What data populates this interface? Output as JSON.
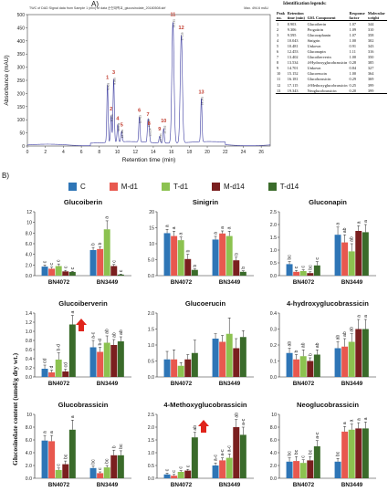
{
  "panel_a": {
    "label": "A)",
    "chrom_header_left": "TWC of DAD Signal data  from Sample 1 (mix) of data 순천대학교_glucosinolate_20180508.sirf",
    "chrom_header_right": "Max. 494.6 mAU",
    "legend_title": "Identification legends:",
    "legend_headers": [
      "Peak no.",
      "Retention time (min)",
      "GSL Component",
      "Response factor",
      "Molecular weight"
    ],
    "legend_rows": [
      [
        "1",
        "8.903",
        "Glucoiberin",
        "1.07",
        "344"
      ],
      [
        "2",
        "9.306",
        "Progoitrin",
        "1.09",
        "310"
      ],
      [
        "3",
        "9.595",
        "Glucoraphanin",
        "1.07",
        "358"
      ],
      [
        "4",
        "10.043",
        "Sinigrin",
        "1.00",
        "302"
      ],
      [
        "5",
        "10.481",
        "Unkown",
        "0.91",
        "343"
      ],
      [
        "6",
        "12.453",
        "Gluconapin",
        "1.11",
        "316"
      ],
      [
        "7",
        "13.402",
        "Glucoiberverin",
        "1.00",
        "350"
      ],
      [
        "8",
        "13.534",
        "4-Hydroxyglucobrassicin",
        "0.28",
        "385"
      ],
      [
        "9",
        "14.701",
        "Unkown",
        "0.84",
        "327"
      ],
      [
        "10",
        "15.152",
        "Glucoerucin",
        "1.00",
        "364"
      ],
      [
        "11",
        "16.181",
        "Glucobrassicin",
        "0.29",
        "369"
      ],
      [
        "12",
        "17.115",
        "4-Methoxyglucobrassicin",
        "0.25",
        "399"
      ],
      [
        "13",
        "19.343",
        "Neoglucobrassicin",
        "0.20",
        "399"
      ]
    ]
  },
  "panel_b": {
    "label": "B)",
    "ylabel": "Glucosinolate content (umol/g dry wt.)",
    "treatments": [
      "C",
      "M-d1",
      "T-d1",
      "M-d14",
      "T-d14"
    ]
  },
  "colors": {
    "C": "#2e75b6",
    "M-d1": "#e8584f",
    "T-d1": "#8cc250",
    "M-d14": "#7a1f1f",
    "T-d14": "#3a6b2a",
    "trace": "#3a3aa0",
    "peak_label": "#c0392b",
    "arrow": "#e0241b"
  },
  "chart_data": [
    {
      "type": "line",
      "title": "",
      "xlabel": "Retention time (min)",
      "ylabel": "Absorbance (mAU)",
      "xlim": [
        0,
        27
      ],
      "ylim": [
        0,
        500
      ],
      "xticks": [
        0,
        2,
        4,
        6,
        8,
        10,
        12,
        14,
        16,
        18,
        20,
        22,
        24,
        26
      ],
      "yticks": [
        0,
        50,
        100,
        150,
        200,
        250,
        300,
        350,
        400,
        450,
        500
      ],
      "peaks": [
        {
          "label": "1",
          "rt": 8.903,
          "height": 220
        },
        {
          "label": "2",
          "rt": 9.306,
          "height": 100
        },
        {
          "label": "3",
          "rt": 9.595,
          "height": 240
        },
        {
          "label": "4",
          "rt": 10.043,
          "height": 65
        },
        {
          "label": "5",
          "rt": 10.481,
          "height": 40
        },
        {
          "label": "6",
          "rt": 12.453,
          "height": 95
        },
        {
          "label": "7",
          "rt": 13.402,
          "height": 80
        },
        {
          "label": "8",
          "rt": 13.534,
          "height": 45
        },
        {
          "label": "9",
          "rt": 14.701,
          "height": 25
        },
        {
          "label": "10",
          "rt": 15.152,
          "height": 55
        },
        {
          "label": "11",
          "rt": 16.181,
          "height": 460
        },
        {
          "label": "12",
          "rt": 17.115,
          "height": 410
        },
        {
          "label": "13",
          "rt": 19.343,
          "height": 165
        }
      ]
    },
    {
      "type": "bar",
      "title": "Glucoiberin",
      "categories": [
        "BN4072",
        "BN3449"
      ],
      "ylim": [
        0,
        12
      ],
      "yticks": [
        0,
        2,
        4,
        6,
        8,
        10,
        12
      ],
      "series": [
        {
          "name": "C",
          "values": [
            1.7,
            4.8
          ],
          "errors": [
            0.3,
            0.5
          ],
          "letters": [
            "c",
            "b"
          ]
        },
        {
          "name": "M-d1",
          "values": [
            1.3,
            5.0
          ],
          "errors": [
            0.3,
            0.4
          ],
          "letters": [
            "c",
            "b"
          ]
        },
        {
          "name": "T-d1",
          "values": [
            1.8,
            8.7
          ],
          "errors": [
            0.4,
            1.6
          ],
          "letters": [
            "c",
            "a"
          ]
        },
        {
          "name": "M-d14",
          "values": [
            0.8,
            1.8
          ],
          "errors": [
            0.2,
            0.3
          ],
          "letters": [
            "c",
            "c"
          ]
        },
        {
          "name": "T-d14",
          "values": [
            0.7,
            0.2
          ],
          "errors": [
            0.1,
            0.1
          ],
          "letters": [
            "c",
            "c"
          ]
        }
      ]
    },
    {
      "type": "bar",
      "title": "Sinigrin",
      "categories": [
        "BN4072",
        "BN3449"
      ],
      "ylim": [
        0,
        20
      ],
      "yticks": [
        0,
        5,
        10,
        15,
        20
      ],
      "series": [
        {
          "name": "C",
          "values": [
            13.3,
            11.3
          ],
          "errors": [
            1.2,
            1.0
          ],
          "letters": [
            "a",
            "a"
          ]
        },
        {
          "name": "M-d1",
          "values": [
            12.4,
            13.2
          ],
          "errors": [
            1.5,
            0.8
          ],
          "letters": [
            "a",
            "a"
          ]
        },
        {
          "name": "T-d1",
          "values": [
            11.1,
            12.4
          ],
          "errors": [
            1.0,
            1.5
          ],
          "letters": [
            "a",
            "a"
          ]
        },
        {
          "name": "M-d14",
          "values": [
            5.2,
            4.8
          ],
          "errors": [
            1.5,
            1.0
          ],
          "letters": [
            "b",
            "b"
          ]
        },
        {
          "name": "T-d14",
          "values": [
            1.8,
            1.2
          ],
          "errors": [
            0.3,
            0.3
          ],
          "letters": [
            "b",
            "b"
          ]
        }
      ]
    },
    {
      "type": "bar",
      "title": "Gluconapin",
      "categories": [
        "BN4072",
        "BN3449"
      ],
      "ylim": [
        0,
        2.5
      ],
      "yticks": [
        0,
        0.5,
        1,
        1.5,
        2,
        2.5
      ],
      "series": [
        {
          "name": "C",
          "values": [
            0.45,
            1.6
          ],
          "errors": [
            0.1,
            0.3
          ],
          "letters": [
            "bc",
            "a"
          ]
        },
        {
          "name": "M-d1",
          "values": [
            0.15,
            1.3
          ],
          "errors": [
            0.05,
            0.3
          ],
          "letters": [
            "c",
            "ab"
          ]
        },
        {
          "name": "T-d1",
          "values": [
            0.18,
            0.95
          ],
          "errors": [
            0.05,
            0.3
          ],
          "letters": [
            "c",
            "ab"
          ]
        },
        {
          "name": "M-d14",
          "values": [
            0.1,
            1.75
          ],
          "errors": [
            0.05,
            0.2
          ],
          "letters": [
            "bc",
            "a"
          ]
        },
        {
          "name": "T-d14",
          "values": [
            0.4,
            1.7
          ],
          "errors": [
            0.15,
            0.3
          ],
          "letters": [
            "c",
            "a"
          ]
        }
      ]
    },
    {
      "type": "bar",
      "title": "Glucoiberverin",
      "categories": [
        "BN4072",
        "BN3449"
      ],
      "ylim": [
        0,
        1.4
      ],
      "yticks": [
        0,
        0.2,
        0.4,
        0.6,
        0.8,
        1,
        1.2,
        1.4
      ],
      "series": [
        {
          "name": "C",
          "values": [
            0.18,
            0.65
          ],
          "errors": [
            0.08,
            0.15
          ],
          "letters": [
            "cd",
            "a-c"
          ]
        },
        {
          "name": "M-d1",
          "values": [
            0.1,
            0.55
          ],
          "errors": [
            0.05,
            0.1
          ],
          "letters": [
            "d",
            "b-d"
          ]
        },
        {
          "name": "T-d1",
          "values": [
            0.38,
            0.75
          ],
          "errors": [
            0.15,
            0.15
          ],
          "letters": [
            "b-d",
            "ab"
          ]
        },
        {
          "name": "M-d14",
          "values": [
            0.12,
            0.7
          ],
          "errors": [
            0.05,
            0.12
          ],
          "letters": [
            "cd",
            "ab"
          ]
        },
        {
          "name": "T-d14",
          "values": [
            1.15,
            0.78
          ],
          "errors": [
            0.2,
            0.1
          ],
          "letters": [
            "a",
            "ab"
          ]
        }
      ]
    },
    {
      "type": "bar",
      "title": "Glucoerucin",
      "categories": [
        "BN4072",
        "BN3449"
      ],
      "ylim": [
        0,
        2
      ],
      "yticks": [
        0,
        0.5,
        1,
        1.5,
        2
      ],
      "series": [
        {
          "name": "C",
          "values": [
            0.55,
            1.2
          ],
          "errors": [
            0.25,
            0.15
          ],
          "letters": [
            "",
            ""
          ]
        },
        {
          "name": "M-d1",
          "values": [
            0.55,
            1.1
          ],
          "errors": [
            0.3,
            0.2
          ],
          "letters": [
            "",
            ""
          ]
        },
        {
          "name": "T-d1",
          "values": [
            0.35,
            1.35
          ],
          "errors": [
            0.1,
            0.5
          ],
          "letters": [
            "",
            ""
          ]
        },
        {
          "name": "M-d14",
          "values": [
            0.55,
            0.9
          ],
          "errors": [
            0.15,
            0.3
          ],
          "letters": [
            "",
            ""
          ]
        },
        {
          "name": "T-d14",
          "values": [
            0.75,
            1.25
          ],
          "errors": [
            0.4,
            0.2
          ],
          "letters": [
            "",
            ""
          ]
        }
      ]
    },
    {
      "type": "bar",
      "title": "4-hydroxyglucobrassicin",
      "categories": [
        "BN4072",
        "BN3449"
      ],
      "ylim": [
        0,
        0.4
      ],
      "yticks": [
        0,
        0.1,
        0.2,
        0.3,
        0.4
      ],
      "series": [
        {
          "name": "C",
          "values": [
            0.15,
            0.18
          ],
          "errors": [
            0.03,
            0.04
          ],
          "letters": [
            "ab",
            "ab"
          ]
        },
        {
          "name": "M-d1",
          "values": [
            0.11,
            0.19
          ],
          "errors": [
            0.03,
            0.05
          ],
          "letters": [
            "b",
            "ab"
          ]
        },
        {
          "name": "T-d1",
          "values": [
            0.13,
            0.22
          ],
          "errors": [
            0.04,
            0.05
          ],
          "letters": [
            "ab",
            "ab"
          ]
        },
        {
          "name": "M-d14",
          "values": [
            0.1,
            0.3
          ],
          "errors": [
            0.02,
            0.06
          ],
          "letters": [
            "b",
            "a"
          ]
        },
        {
          "name": "T-d14",
          "values": [
            0.14,
            0.3
          ],
          "errors": [
            0.03,
            0.06
          ],
          "letters": [
            "ab",
            "a"
          ]
        }
      ]
    },
    {
      "type": "bar",
      "title": "Glucobrassicin",
      "categories": [
        "BN4072",
        "BN3449"
      ],
      "ylim": [
        0,
        10
      ],
      "yticks": [
        0,
        2,
        4,
        6,
        8,
        10
      ],
      "series": [
        {
          "name": "C",
          "values": [
            5.9,
            1.6
          ],
          "errors": [
            0.8,
            0.3
          ],
          "letters": [
            "a",
            "bc"
          ]
        },
        {
          "name": "M-d1",
          "values": [
            5.8,
            0.8
          ],
          "errors": [
            0.9,
            0.2
          ],
          "letters": [
            "a",
            "c"
          ]
        },
        {
          "name": "T-d1",
          "values": [
            1.3,
            1.7
          ],
          "errors": [
            0.3,
            0.3
          ],
          "letters": [
            "c",
            "bc"
          ]
        },
        {
          "name": "M-d14",
          "values": [
            2.2,
            3.6
          ],
          "errors": [
            0.5,
            0.8
          ],
          "letters": [
            "bc",
            "b"
          ]
        },
        {
          "name": "T-d14",
          "values": [
            7.6,
            3.6
          ],
          "errors": [
            1.5,
            0.7
          ],
          "letters": [
            "a",
            "bc"
          ]
        }
      ]
    },
    {
      "type": "bar",
      "title": "4-Methoxyglucobrassicin",
      "categories": [
        "BN4072",
        "BN3449"
      ],
      "ylim": [
        0,
        2.5
      ],
      "yticks": [
        0,
        0.5,
        1,
        1.5,
        2,
        2.5
      ],
      "series": [
        {
          "name": "C",
          "values": [
            0.15,
            0.5
          ],
          "errors": [
            0.05,
            0.1
          ],
          "letters": [
            "c",
            "a-c"
          ]
        },
        {
          "name": "M-d1",
          "values": [
            0.1,
            0.7
          ],
          "errors": [
            0.05,
            0.1
          ],
          "letters": [
            "c",
            "a-c"
          ]
        },
        {
          "name": "T-d1",
          "values": [
            0.25,
            0.8
          ],
          "errors": [
            0.05,
            0.15
          ],
          "letters": [
            "c",
            "a-c"
          ]
        },
        {
          "name": "M-d14",
          "values": [
            0.3,
            2.0
          ],
          "errors": [
            0.05,
            0.3
          ],
          "letters": [
            "c",
            "ab"
          ]
        },
        {
          "name": "T-d14",
          "values": [
            1.6,
            1.7
          ],
          "errors": [
            0.2,
            0.3
          ],
          "letters": [
            "ab",
            "a-c"
          ]
        }
      ]
    },
    {
      "type": "bar",
      "title": "Neoglucobrassicin",
      "categories": [
        "BN4072",
        "BN3449"
      ],
      "ylim": [
        0,
        10
      ],
      "yticks": [
        0,
        2,
        4,
        6,
        8,
        10
      ],
      "series": [
        {
          "name": "C",
          "values": [
            2.6,
            2.6
          ],
          "errors": [
            0.6,
            0.5
          ],
          "letters": [
            "bc",
            "bc"
          ]
        },
        {
          "name": "M-d1",
          "values": [
            2.7,
            7.3
          ],
          "errors": [
            0.7,
            0.8
          ],
          "letters": [
            "bc",
            "a"
          ]
        },
        {
          "name": "T-d1",
          "values": [
            2.4,
            7.6
          ],
          "errors": [
            0.5,
            0.9
          ],
          "letters": [
            "c",
            "a"
          ]
        },
        {
          "name": "M-d14",
          "values": [
            2.8,
            7.8
          ],
          "errors": [
            0.6,
            0.9
          ],
          "letters": [
            "bc",
            "a"
          ]
        },
        {
          "name": "T-d14",
          "values": [
            5.0,
            7.8
          ],
          "errors": [
            0.9,
            1.0
          ],
          "letters": [
            "a-c",
            "a"
          ]
        }
      ]
    }
  ],
  "arrows": [
    {
      "chart": "Glucoiberverin",
      "category": "BN4072"
    },
    {
      "chart": "4-Methoxyglucobrassicin",
      "category": "BN4072"
    }
  ]
}
